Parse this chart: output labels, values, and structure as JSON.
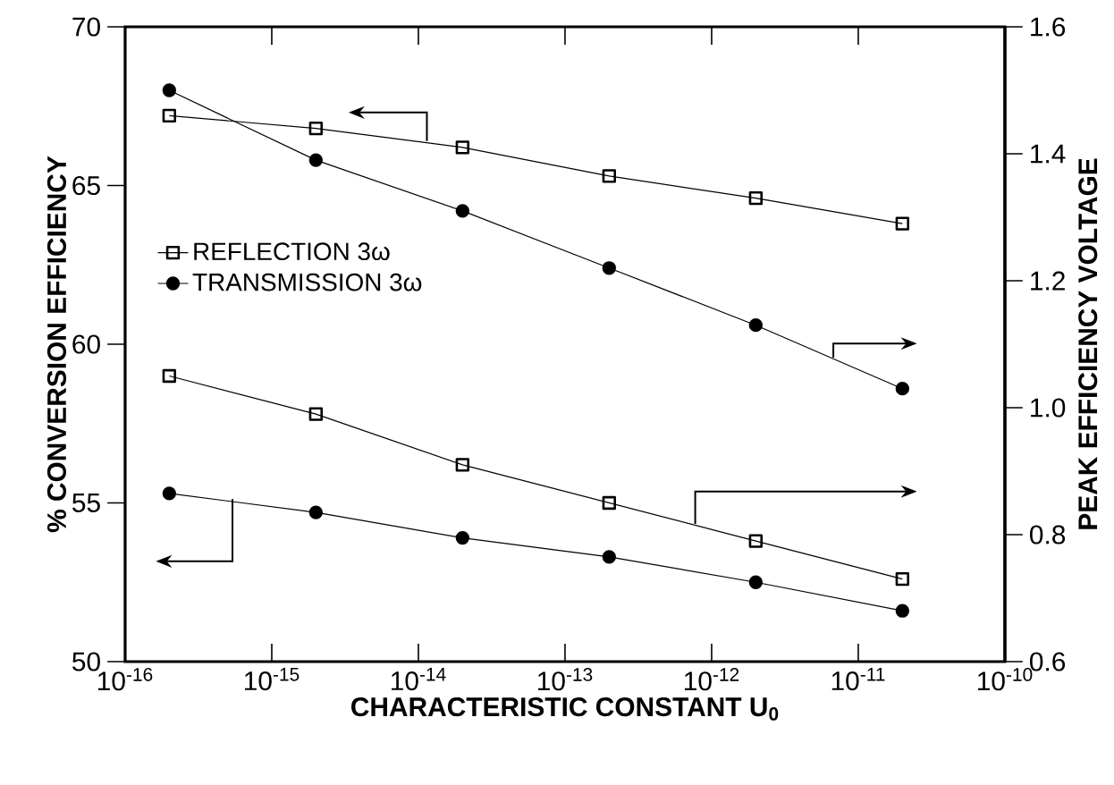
{
  "chart_data": {
    "type": "line",
    "xlabel": "CHARACTERISTIC CONSTANT U$_{0}$",
    "ylabel": "% CONVERSION EFFICIENCY",
    "y2label": "PEAK EFFICIENCY VOLTAGE",
    "x": [
      2e-16,
      2e-15,
      2e-14,
      2e-13,
      2e-12,
      2e-11
    ],
    "series": [
      {
        "name": "REFLECTION 3ω",
        "color": "#000000",
        "marker": "square",
        "values": [
          67.2,
          66.8,
          66.2,
          65.3,
          64.6,
          63.8
        ]
      },
      {
        "name": "TRANSMISSION 3ω",
        "color": "#000000",
        "marker": "circle",
        "values": [
          55.3,
          54.7,
          53.9,
          53.3,
          52.5,
          51.6
        ]
      },
      {
        "color": "#000000",
        "marker": "circle",
        "axis": "y2",
        "values": [
          1.5,
          1.39,
          1.31,
          1.22,
          1.13,
          1.03
        ]
      },
      {
        "color": "#000000",
        "marker": "square",
        "axis": "y2",
        "values": [
          1.05,
          0.99,
          0.91,
          0.85,
          0.79,
          0.73
        ]
      }
    ],
    "log": "x",
    "xlim": [
      1e-16,
      1e-10
    ],
    "xticks": [
      {
        "value": 1e-16,
        "label": "10$^{-16}$"
      },
      {
        "value": 1e-15,
        "label": "10$^{-15}$"
      },
      {
        "value": 1e-14,
        "label": "10$^{-14}$"
      },
      {
        "value": 1e-13,
        "label": "10$^{-13}$"
      },
      {
        "value": 1e-12,
        "label": "10$^{-12}$"
      },
      {
        "value": 1e-11,
        "label": "10$^{-11}$"
      },
      {
        "value": 1e-10,
        "label": "10$^{-10}$"
      }
    ],
    "ylim": [
      50,
      70
    ],
    "yticks": [
      50,
      55,
      60,
      65,
      70
    ],
    "y2lim": [
      0.6,
      1.6
    ],
    "y2ticks": [
      {
        "value": 0.6,
        "label": "0.6"
      },
      {
        "value": 0.8,
        "label": "0.8"
      },
      {
        "value": 1.0,
        "label": "1.0"
      },
      {
        "value": 1.2,
        "label": "1.2"
      },
      {
        "value": 1.4,
        "label": "1.4"
      },
      {
        "value": 1.6,
        "label": "1.6"
      }
    ],
    "legend": "left",
    "grid": false,
    "line_style": "solid"
  }
}
